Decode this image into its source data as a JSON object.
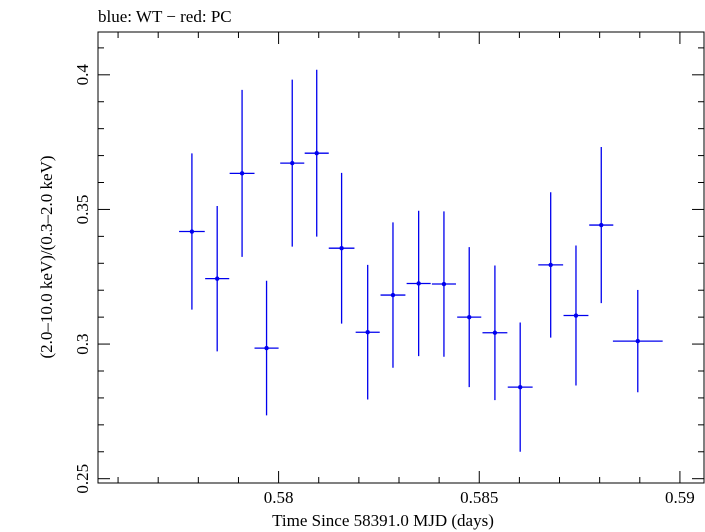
{
  "chart_data": {
    "type": "scatter",
    "title": "blue: WT − red: PC",
    "xlabel": "Time Since 58391.0 MJD (days)",
    "ylabel": "(2.0–10.0 keV)/(0.3–2.0 keV)",
    "xlim": [
      0.5755,
      0.5906
    ],
    "ylim": [
      0.2484,
      0.4159
    ],
    "x_ticks": [
      {
        "value": 0.58,
        "label": "0.58"
      },
      {
        "value": 0.585,
        "label": "0.585"
      },
      {
        "value": 0.59,
        "label": "0.59"
      }
    ],
    "y_ticks": [
      {
        "value": 0.25,
        "label": "0.25"
      },
      {
        "value": 0.3,
        "label": "0.3"
      },
      {
        "value": 0.35,
        "label": "0.35"
      },
      {
        "value": 0.4,
        "label": "0.4"
      }
    ],
    "x_minor_step": 0.001,
    "y_minor_step": 0.01,
    "grid": false,
    "series": [
      {
        "color": "#0000ee",
        "points": [
          {
            "x": 0.57784,
            "xerr": 0.00032,
            "y": 0.3418,
            "yerr": 0.029
          },
          {
            "x": 0.57847,
            "xerr": 0.0003,
            "y": 0.3243,
            "yerr": 0.027
          },
          {
            "x": 0.57909,
            "xerr": 0.00031,
            "y": 0.3634,
            "yerr": 0.031
          },
          {
            "x": 0.5797,
            "xerr": 0.0003,
            "y": 0.2985,
            "yerr": 0.025
          },
          {
            "x": 0.58034,
            "xerr": 0.0003,
            "y": 0.3672,
            "yerr": 0.031
          },
          {
            "x": 0.58095,
            "xerr": 0.0003,
            "y": 0.3709,
            "yerr": 0.031
          },
          {
            "x": 0.58157,
            "xerr": 0.00032,
            "y": 0.3356,
            "yerr": 0.028
          },
          {
            "x": 0.58222,
            "xerr": 0.0003,
            "y": 0.3044,
            "yerr": 0.025
          },
          {
            "x": 0.58285,
            "xerr": 0.00031,
            "y": 0.3182,
            "yerr": 0.027
          },
          {
            "x": 0.58349,
            "xerr": 0.0003,
            "y": 0.3225,
            "yerr": 0.027
          },
          {
            "x": 0.58412,
            "xerr": 0.0003,
            "y": 0.3223,
            "yerr": 0.027
          },
          {
            "x": 0.58475,
            "xerr": 0.0003,
            "y": 0.31,
            "yerr": 0.026
          },
          {
            "x": 0.58539,
            "xerr": 0.00031,
            "y": 0.3042,
            "yerr": 0.025
          },
          {
            "x": 0.58602,
            "xerr": 0.00031,
            "y": 0.284,
            "yerr": 0.024
          },
          {
            "x": 0.58678,
            "xerr": 0.00031,
            "y": 0.3294,
            "yerr": 0.027
          },
          {
            "x": 0.58741,
            "xerr": 0.00031,
            "y": 0.3106,
            "yerr": 0.026
          },
          {
            "x": 0.58804,
            "xerr": 0.0003,
            "y": 0.3442,
            "yerr": 0.029
          },
          {
            "x": 0.58895,
            "xerr": 0.00062,
            "y": 0.3011,
            "yerr": 0.019
          }
        ]
      }
    ]
  }
}
